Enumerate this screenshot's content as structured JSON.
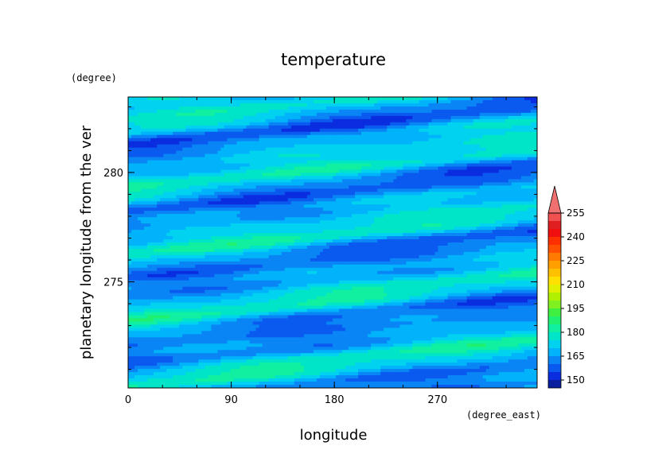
{
  "chart_data": {
    "type": "heatmap",
    "title": "temperature",
    "xlabel": "longitude",
    "ylabel": "planetary longitude from the ver",
    "x_unit": "(degree_east)",
    "y_unit": "(degree)",
    "xlim": [
      0,
      357
    ],
    "ylim": [
      270.15,
      283.45
    ],
    "x_ticks": [
      "0",
      "90",
      "180",
      "270"
    ],
    "x_tick_values": [
      0,
      90,
      180,
      270
    ],
    "y_ticks": [
      "275",
      "280"
    ],
    "y_tick_values": [
      275,
      280
    ],
    "colorbar": {
      "levels": [
        145,
        150,
        155,
        160,
        165,
        170,
        175,
        180,
        185,
        190,
        195,
        200,
        205,
        210,
        215,
        220,
        225,
        230,
        235,
        240,
        245,
        250,
        255,
        260
      ],
      "labels": [
        "150",
        "165",
        "180",
        "195",
        "210",
        "225",
        "240",
        "255"
      ],
      "label_values": [
        150,
        165,
        180,
        195,
        210,
        225,
        240,
        255
      ],
      "colors": [
        "#0a1fa0",
        "#0b2de0",
        "#0a5af0",
        "#0a85f5",
        "#00b3fa",
        "#00d2f0",
        "#00e5c8",
        "#10f0a0",
        "#20f070",
        "#40f040",
        "#80f020",
        "#b0f000",
        "#e0f000",
        "#ffe000",
        "#ffc000",
        "#ffa000",
        "#ff7a00",
        "#ff5000",
        "#ff3000",
        "#f01010",
        "#e02020",
        "#f05050",
        "#f07070"
      ],
      "extend": "max",
      "extend_color": "#f07070"
    },
    "field": {
      "description_values": "temperature ranges approx. 147-185 K in diagonal bands rising from west to east",
      "min": 147,
      "max": 185,
      "band_slope_deg_per_deg_east": 0.0065
    }
  }
}
